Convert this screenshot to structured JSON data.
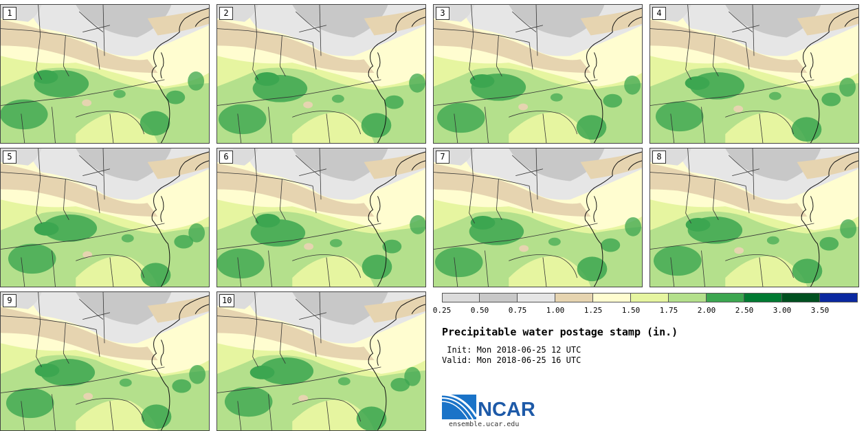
{
  "stamps": [
    {
      "label": "1"
    },
    {
      "label": "2"
    },
    {
      "label": "3"
    },
    {
      "label": "4"
    },
    {
      "label": "5"
    },
    {
      "label": "6"
    },
    {
      "label": "7"
    },
    {
      "label": "8"
    },
    {
      "label": "9"
    },
    {
      "label": "10"
    }
  ],
  "legend": {
    "ticks": [
      "0.25",
      "0.50",
      "0.75",
      "1.00",
      "1.25",
      "1.50",
      "1.75",
      "2.00",
      "2.50",
      "3.00",
      "3.50"
    ],
    "colors": [
      "#dcdcdc",
      "#c8c8c8",
      "#e6e6e6",
      "#e6d4b0",
      "#fffdd0",
      "#e6f5a0",
      "#b4e08c",
      "#3ca650",
      "#007a32",
      "#005020",
      "#0a28a0"
    ]
  },
  "title": "Precipitable water postage stamp (in.)",
  "init": "Init: Mon 2018-06-25 12 UTC",
  "valid": "Valid: Mon 2018-06-25 16 UTC",
  "logo": {
    "name": "NCAR",
    "url": "ensemble.ucar.edu"
  },
  "palette": {
    "gray_light": "#dcdcdc",
    "gray_mid": "#c8c8c8",
    "gray_pale": "#e6e6e6",
    "tan": "#e6d4b0",
    "cream": "#fffdd0",
    "light_green": "#e6f5a0",
    "mid_green": "#b4e08c",
    "green": "#3ca650",
    "dark_green": "#007a32"
  }
}
